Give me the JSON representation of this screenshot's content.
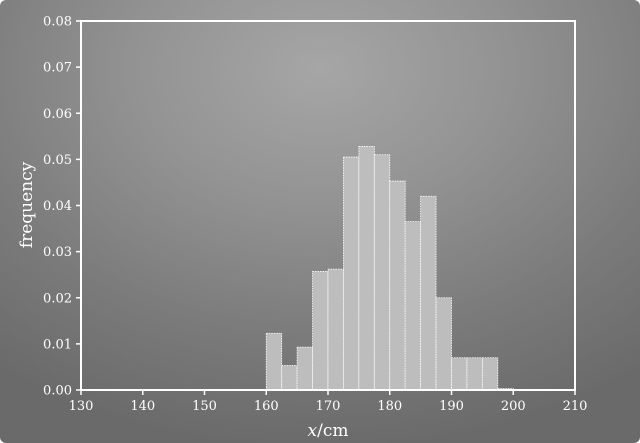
{
  "chart_data": {
    "type": "bar",
    "title": "",
    "xlabel": "x/cm",
    "xlabel_var": "x",
    "xlabel_unit": "/cm",
    "ylabel": "frequency",
    "xlim": [
      130,
      210
    ],
    "ylim": [
      0,
      0.08
    ],
    "xticks": [
      130,
      140,
      150,
      160,
      170,
      180,
      190,
      200,
      210
    ],
    "yticks": [
      "0.00",
      "0.01",
      "0.02",
      "0.03",
      "0.04",
      "0.05",
      "0.06",
      "0.07",
      "0.08"
    ],
    "bin_width": 2.5,
    "bins": [
      {
        "x0": 160.0,
        "value": 0.0123
      },
      {
        "x0": 162.5,
        "value": 0.0053
      },
      {
        "x0": 165.0,
        "value": 0.0093
      },
      {
        "x0": 167.5,
        "value": 0.0257
      },
      {
        "x0": 170.0,
        "value": 0.0262
      },
      {
        "x0": 172.5,
        "value": 0.0505
      },
      {
        "x0": 175.0,
        "value": 0.0528
      },
      {
        "x0": 177.5,
        "value": 0.051
      },
      {
        "x0": 180.0,
        "value": 0.0453
      },
      {
        "x0": 182.5,
        "value": 0.0365
      },
      {
        "x0": 185.0,
        "value": 0.042
      },
      {
        "x0": 187.5,
        "value": 0.02
      },
      {
        "x0": 190.0,
        "value": 0.007
      },
      {
        "x0": 192.5,
        "value": 0.007
      },
      {
        "x0": 195.0,
        "value": 0.007
      },
      {
        "x0": 197.5,
        "value": 0.0003
      }
    ],
    "bar_color": "#bdbdbd",
    "edge_color": "#ffffff",
    "axis_color": "#ffffff"
  }
}
